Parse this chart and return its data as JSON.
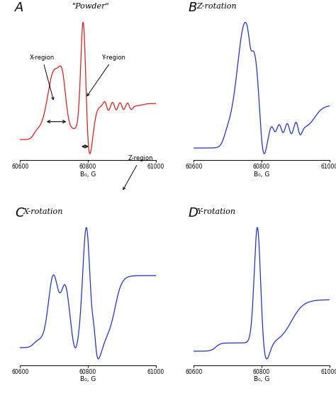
{
  "panel_labels": [
    "A",
    "B",
    "C",
    "D"
  ],
  "panel_titles": [
    "\"Powder\"",
    "Z-rotation",
    "X-rotation",
    "Y-rotation"
  ],
  "xlabel": "B₀, G",
  "xlim": [
    60600,
    61000
  ],
  "xticks": [
    60600,
    60800,
    61000
  ],
  "color_A": "#cc2222",
  "color_BCD": "#2233bb",
  "bg_color": "#ffffff",
  "figsize": [
    4.74,
    5.55
  ],
  "dpi": 100
}
